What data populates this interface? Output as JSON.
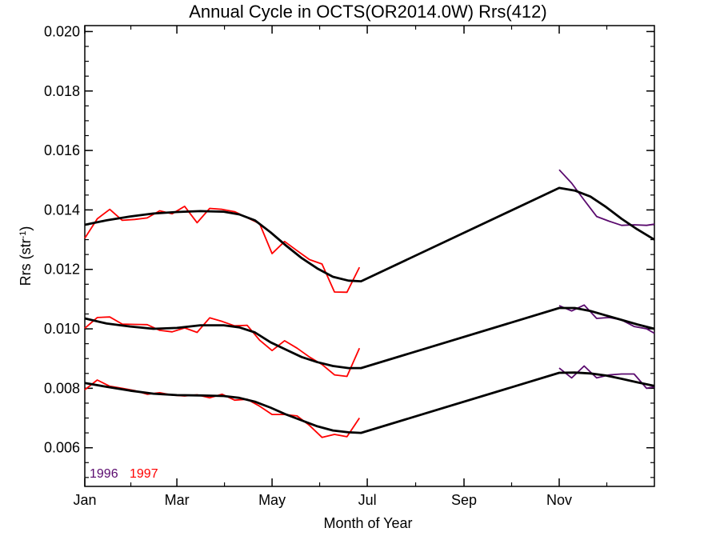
{
  "chart_data": {
    "type": "line",
    "title": "Annual Cycle in OCTS(OR2014.0W) Rrs(412)",
    "xlabel": "Month of Year",
    "ylabel_main": "Rrs (str",
    "ylabel_sup": "-1",
    "ylabel_tail": ")",
    "xlim": [
      1,
      366
    ],
    "ylim": [
      0.0047,
      0.0202
    ],
    "x_ticks": [
      {
        "label": "Jan",
        "day": 1
      },
      {
        "label": "Mar",
        "day": 60
      },
      {
        "label": "May",
        "day": 121
      },
      {
        "label": "Jul",
        "day": 182
      },
      {
        "label": "Sep",
        "day": 244
      },
      {
        "label": "Nov",
        "day": 305
      }
    ],
    "y_ticks": [
      {
        "label": "0.006",
        "value": 0.006
      },
      {
        "label": "0.008",
        "value": 0.008
      },
      {
        "label": "0.010",
        "value": 0.01
      },
      {
        "label": "0.012",
        "value": 0.012
      },
      {
        "label": "0.014",
        "value": 0.014
      },
      {
        "label": "0.016",
        "value": 0.016
      },
      {
        "label": "0.018",
        "value": 0.018
      },
      {
        "label": "0.020",
        "value": 0.02
      }
    ],
    "legend": [
      {
        "label": "1996",
        "color": "#5a0a6e"
      },
      {
        "label": "1997",
        "color": "#ff0000"
      }
    ],
    "series": [
      {
        "name": "1997",
        "color": "#ff0000",
        "group": "upper",
        "x": [
          1,
          9,
          17,
          25,
          33,
          41,
          49,
          57,
          65,
          73,
          81,
          89,
          97,
          105,
          113,
          121,
          129,
          137,
          145,
          153,
          161,
          169,
          177
        ],
        "y": [
          0.01305,
          0.0137,
          0.01402,
          0.01365,
          0.01368,
          0.01373,
          0.01397,
          0.01387,
          0.01412,
          0.01357,
          0.01405,
          0.01402,
          0.01394,
          0.01374,
          0.01354,
          0.01253,
          0.01294,
          0.01263,
          0.01233,
          0.01218,
          0.01124,
          0.01123,
          0.01207
        ]
      },
      {
        "name": "1997",
        "color": "#ff0000",
        "group": "middle",
        "x": [
          1,
          9,
          17,
          25,
          33,
          41,
          49,
          57,
          65,
          73,
          81,
          89,
          97,
          105,
          113,
          121,
          129,
          137,
          145,
          153,
          161,
          169,
          177
        ],
        "y": [
          0.01002,
          0.01038,
          0.0104,
          0.01016,
          0.01015,
          0.01014,
          0.00995,
          0.0099,
          0.01003,
          0.00988,
          0.01037,
          0.01025,
          0.0101,
          0.01012,
          0.00962,
          0.00927,
          0.0096,
          0.00935,
          0.00905,
          0.0088,
          0.00845,
          0.0084,
          0.00935
        ]
      },
      {
        "name": "1997",
        "color": "#ff0000",
        "group": "lower",
        "x": [
          1,
          9,
          17,
          25,
          33,
          41,
          49,
          57,
          65,
          73,
          81,
          89,
          97,
          105,
          113,
          121,
          129,
          137,
          145,
          153,
          161,
          169,
          177
        ],
        "y": [
          0.00795,
          0.00828,
          0.00807,
          0.008,
          0.00792,
          0.0078,
          0.00785,
          0.00777,
          0.00774,
          0.00778,
          0.00768,
          0.0078,
          0.0076,
          0.00763,
          0.0074,
          0.00712,
          0.00712,
          0.00707,
          0.00675,
          0.00635,
          0.00645,
          0.00637,
          0.007
        ]
      },
      {
        "name": "1996",
        "color": "#5a0a6e",
        "group": "upper",
        "x": [
          305,
          313,
          321,
          329,
          337,
          345,
          353,
          361,
          366
        ],
        "y": [
          0.01535,
          0.0149,
          0.01433,
          0.01378,
          0.01362,
          0.01348,
          0.0135,
          0.01348,
          0.01352
        ]
      },
      {
        "name": "1996",
        "color": "#5a0a6e",
        "group": "middle",
        "x": [
          305,
          313,
          321,
          329,
          337,
          345,
          353,
          361,
          366
        ],
        "y": [
          0.01078,
          0.0106,
          0.0108,
          0.01035,
          0.01038,
          0.0103,
          0.01008,
          0.01,
          0.00985
        ]
      },
      {
        "name": "1996",
        "color": "#5a0a6e",
        "group": "lower",
        "x": [
          305,
          313,
          321,
          329,
          337,
          345,
          353,
          361,
          366
        ],
        "y": [
          0.00868,
          0.00835,
          0.00875,
          0.00835,
          0.00845,
          0.00848,
          0.00848,
          0.008,
          0.00805
        ]
      }
    ],
    "fits": [
      {
        "group": "upper",
        "color": "#000000",
        "x": [
          1,
          15,
          30,
          45,
          60,
          75,
          90,
          100,
          110,
          120,
          130,
          140,
          150,
          160,
          170,
          178,
          305,
          315,
          325,
          335,
          345,
          355,
          366
        ],
        "y": [
          0.0135,
          0.01365,
          0.01378,
          0.01388,
          0.01393,
          0.01396,
          0.01394,
          0.01385,
          0.01365,
          0.01325,
          0.0128,
          0.01238,
          0.01203,
          0.01175,
          0.01162,
          0.0116,
          0.01474,
          0.01465,
          0.01445,
          0.0141,
          0.0137,
          0.01335,
          0.013
        ]
      },
      {
        "group": "middle",
        "color": "#000000",
        "x": [
          1,
          15,
          30,
          45,
          60,
          75,
          90,
          100,
          110,
          120,
          130,
          140,
          150,
          160,
          170,
          178,
          305,
          315,
          325,
          335,
          345,
          355,
          366
        ],
        "y": [
          0.01035,
          0.01018,
          0.01008,
          0.01,
          0.01003,
          0.01012,
          0.01012,
          0.01005,
          0.00988,
          0.00955,
          0.0093,
          0.00905,
          0.00888,
          0.00875,
          0.00868,
          0.00868,
          0.0107,
          0.0107,
          0.0106,
          0.01045,
          0.0103,
          0.01015,
          0.01
        ]
      },
      {
        "group": "lower",
        "color": "#000000",
        "x": [
          1,
          15,
          30,
          45,
          60,
          75,
          90,
          100,
          110,
          120,
          130,
          140,
          150,
          160,
          170,
          178,
          305,
          315,
          325,
          335,
          345,
          355,
          366
        ],
        "y": [
          0.00818,
          0.00805,
          0.00792,
          0.00782,
          0.00777,
          0.00776,
          0.00774,
          0.00768,
          0.00755,
          0.00735,
          0.00712,
          0.00692,
          0.00672,
          0.00658,
          0.00652,
          0.0065,
          0.00852,
          0.00853,
          0.0085,
          0.00843,
          0.00832,
          0.0082,
          0.00808
        ]
      }
    ]
  }
}
